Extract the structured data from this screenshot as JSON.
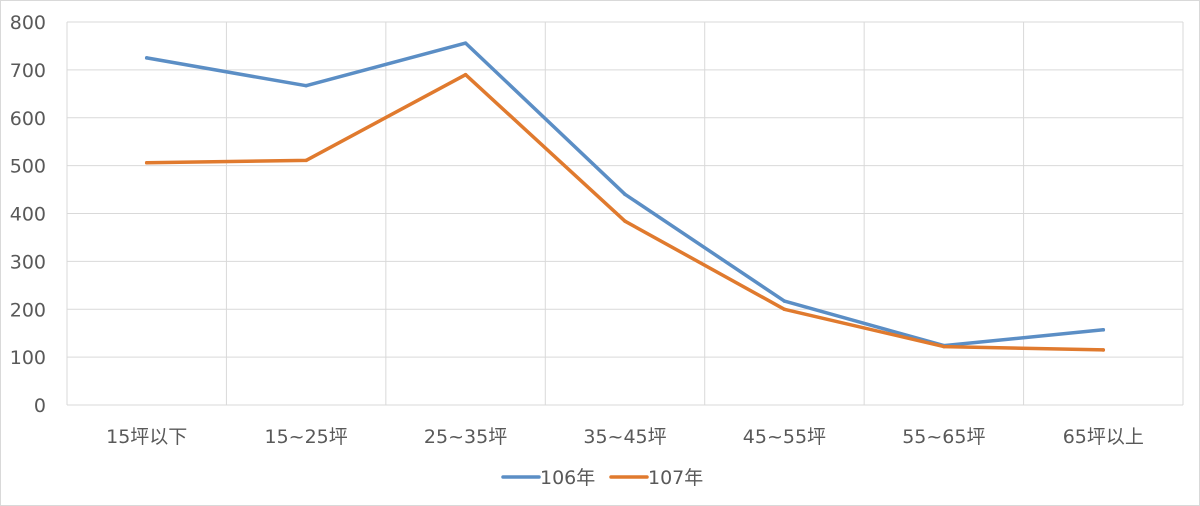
{
  "chart_data": {
    "type": "line",
    "title": "",
    "xlabel": "",
    "ylabel": "",
    "categories": [
      "15坪以下",
      "15~25坪",
      "25~35坪",
      "35~45坪",
      "45~55坪",
      "55~65坪",
      "65坪以上"
    ],
    "ylim": [
      0,
      800
    ],
    "yticks": [
      0,
      100,
      200,
      300,
      400,
      500,
      600,
      700,
      800
    ],
    "grid": true,
    "legend_position": "bottom",
    "series": [
      {
        "name": "106年",
        "color": "#5b8ec5",
        "values": [
          725,
          667,
          756,
          440,
          217,
          124,
          157
        ]
      },
      {
        "name": "107年",
        "color": "#e07a2e",
        "values": [
          506,
          511,
          690,
          384,
          200,
          122,
          115
        ]
      }
    ]
  }
}
